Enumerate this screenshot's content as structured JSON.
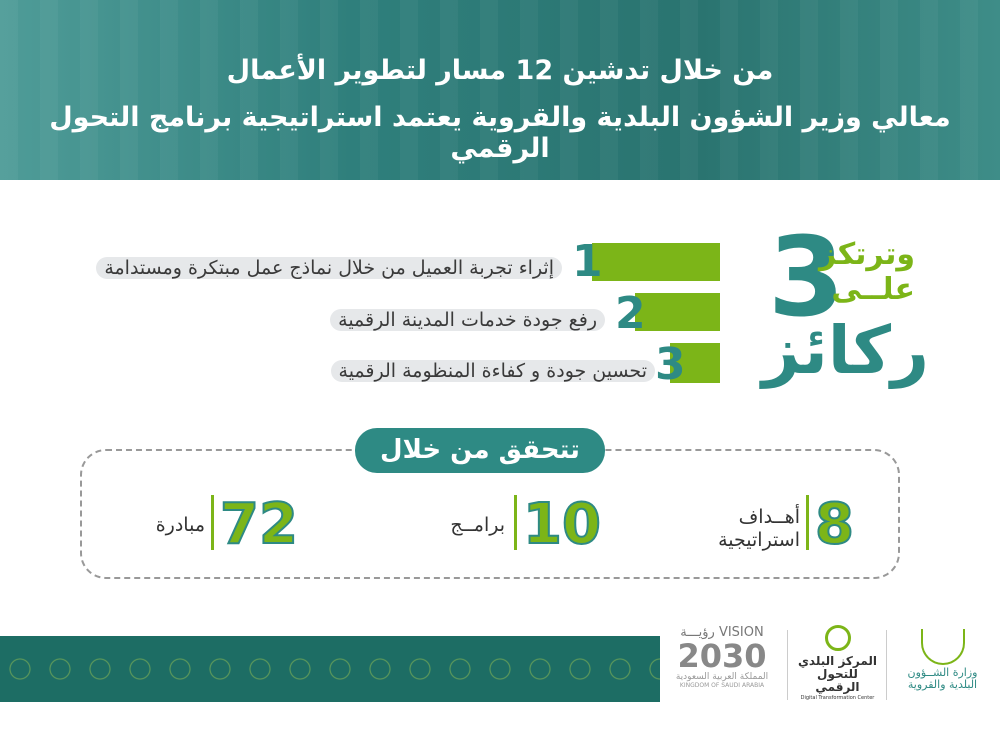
{
  "header": {
    "line1": "من خلال تدشين  12 مسار لتطوير الأعمال",
    "line2": "معالي وزير الشؤون البلدية والقروية يعتمد استراتيجية برنامج التحول الرقمي"
  },
  "pillars_title": {
    "number": "3",
    "focus": "وترتكز علــى",
    "pillars": "ركائز"
  },
  "pillars": [
    {
      "n": "1",
      "text": "إثراء تجربة العميل من خلال نماذج عمل مبتكرة ومستدامة"
    },
    {
      "n": "2",
      "text": "رفع جودة خدمات المدينة الرقمية"
    },
    {
      "n": "3",
      "text": "تحسين جودة و كفاءة المنظومة الرقمية"
    }
  ],
  "achieve": {
    "label": "تتحقق من خلال",
    "stats": [
      {
        "value": "8",
        "label": "أهــداف استراتيجية"
      },
      {
        "value": "10",
        "label": "برامــج"
      },
      {
        "value": "72",
        "label": "مبادرة"
      }
    ]
  },
  "logos": {
    "vision": {
      "top": "VISION رؤيـــة",
      "year": "2030",
      "ar": "المملكة العربية السعودية",
      "en": "KINGDOM OF SAUDI ARABIA"
    },
    "dtc": {
      "ar": "المركز البلدي للتحول الرقمي",
      "en": "Digital Transformation Center"
    },
    "ministry": {
      "ar": "وزارة الشــؤون البلدية والقروية"
    }
  },
  "colors": {
    "teal": "#2e8a84",
    "green": "#7cb518",
    "band": "#1d6d64"
  }
}
